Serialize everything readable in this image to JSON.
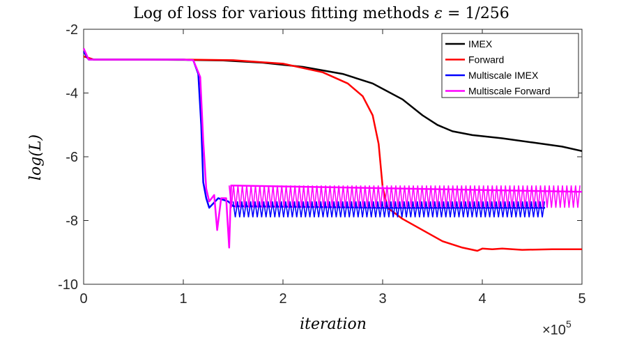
{
  "chart_data": {
    "type": "line",
    "title_plain": "Log of loss for various fitting methods ",
    "title_symbol": "ε",
    "title_tail": " = 1/256",
    "xlabel": "iteration",
    "ylabel": "log(L)",
    "xlim": [
      0,
      500000
    ],
    "ylim": [
      -10,
      -2
    ],
    "x_ticks": [
      0,
      1,
      2,
      3,
      4,
      5
    ],
    "x_tick_scale_label": "×10",
    "x_tick_scale_exp": "5",
    "y_ticks": [
      -2,
      -4,
      -6,
      -8,
      -10
    ],
    "legend_position": "top-right",
    "series": [
      {
        "name": "IMEX",
        "color": "#000000",
        "points": [
          [
            0,
            -2.85
          ],
          [
            10000,
            -2.95
          ],
          [
            60000,
            -2.95
          ],
          [
            100000,
            -2.96
          ],
          [
            140000,
            -2.98
          ],
          [
            180000,
            -3.05
          ],
          [
            220000,
            -3.18
          ],
          [
            260000,
            -3.4
          ],
          [
            290000,
            -3.7
          ],
          [
            320000,
            -4.2
          ],
          [
            340000,
            -4.7
          ],
          [
            355000,
            -5.0
          ],
          [
            370000,
            -5.2
          ],
          [
            390000,
            -5.32
          ],
          [
            420000,
            -5.42
          ],
          [
            450000,
            -5.55
          ],
          [
            480000,
            -5.68
          ],
          [
            500000,
            -5.82
          ]
        ]
      },
      {
        "name": "Forward",
        "color": "#ff0000",
        "points": [
          [
            0,
            -2.85
          ],
          [
            10000,
            -2.95
          ],
          [
            100000,
            -2.95
          ],
          [
            150000,
            -2.97
          ],
          [
            200000,
            -3.08
          ],
          [
            240000,
            -3.35
          ],
          [
            265000,
            -3.7
          ],
          [
            280000,
            -4.1
          ],
          [
            290000,
            -4.7
          ],
          [
            296000,
            -5.6
          ],
          [
            300000,
            -6.95
          ],
          [
            305000,
            -7.6
          ],
          [
            320000,
            -7.95
          ],
          [
            340000,
            -8.3
          ],
          [
            360000,
            -8.65
          ],
          [
            380000,
            -8.85
          ],
          [
            395000,
            -8.95
          ],
          [
            400000,
            -8.88
          ],
          [
            410000,
            -8.9
          ],
          [
            420000,
            -8.88
          ],
          [
            440000,
            -8.92
          ],
          [
            470000,
            -8.9
          ],
          [
            500000,
            -8.9
          ]
        ]
      },
      {
        "name": "Multiscale IMEX",
        "color": "#0000ff",
        "points": [
          [
            0,
            -2.7
          ],
          [
            5000,
            -2.95
          ],
          [
            100000,
            -2.95
          ],
          [
            110000,
            -2.97
          ],
          [
            115000,
            -3.4
          ],
          [
            118000,
            -5.0
          ],
          [
            120000,
            -6.8
          ],
          [
            123000,
            -7.3
          ],
          [
            126000,
            -7.6
          ],
          [
            135000,
            -7.3
          ],
          [
            145000,
            -7.4
          ],
          [
            150000,
            -7.55
          ],
          [
            300000,
            -7.6
          ],
          [
            463000,
            -7.6
          ]
        ],
        "band": [
          150000,
          463000,
          -7.4,
          -7.9
        ]
      },
      {
        "name": "Multiscale Forward",
        "color": "#ff00ff",
        "points": [
          [
            0,
            -2.6
          ],
          [
            5000,
            -2.95
          ],
          [
            100000,
            -2.95
          ],
          [
            110000,
            -2.97
          ],
          [
            117000,
            -3.5
          ],
          [
            120000,
            -5.5
          ],
          [
            123000,
            -7.0
          ],
          [
            126000,
            -7.4
          ],
          [
            131000,
            -7.2
          ],
          [
            134000,
            -8.3
          ],
          [
            138000,
            -7.3
          ],
          [
            143000,
            -7.3
          ],
          [
            146000,
            -8.85
          ],
          [
            148000,
            -6.9
          ],
          [
            500000,
            -7.1
          ]
        ],
        "band": [
          146000,
          500000,
          -6.9,
          -7.6
        ]
      }
    ]
  }
}
